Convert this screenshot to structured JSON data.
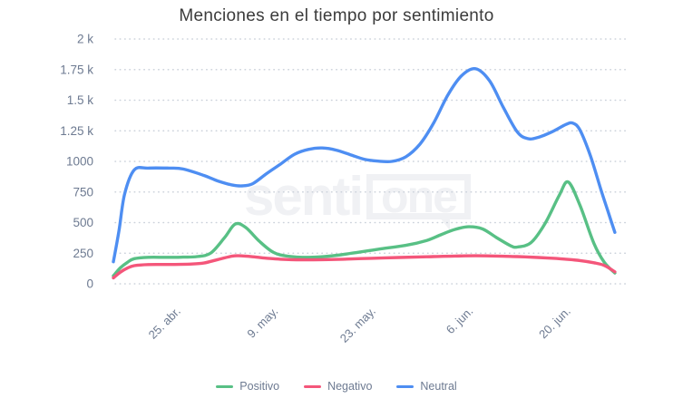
{
  "title": "Menciones en el tiempo por sentimiento",
  "watermark": {
    "text_prefix": "senti",
    "text_boxed": "one"
  },
  "colors": {
    "background": "#ffffff",
    "title_text": "#3b3b3b",
    "axis_text": "#6d7a91",
    "grid_dots": "#ccd2db",
    "watermark": "#f0f1f4",
    "positive": "#58c085",
    "negative": "#f4567a",
    "neutral": "#4e8ef2"
  },
  "chart_data": {
    "type": "line",
    "title": "Menciones en el tiempo por sentimiento",
    "x_axis": {
      "tick_labels": [
        "25. abr.",
        "9. may.",
        "23. may.",
        "6. jun.",
        "20. jun."
      ],
      "tick_days": [
        10,
        24,
        38,
        52,
        66
      ],
      "x_unit": "days",
      "x_range_days": [
        0,
        72
      ]
    },
    "y_axis": {
      "tick_labels": [
        "0",
        "250",
        "500",
        "750",
        "1000",
        "1.25 k",
        "1.5 k",
        "1.75 k",
        "2 k"
      ],
      "tick_values": [
        0,
        250,
        500,
        750,
        1000,
        1250,
        1500,
        1750,
        2000
      ],
      "range": [
        0,
        2000
      ]
    },
    "grid": "dotted-horizontal",
    "legend_position": "bottom-center",
    "series": [
      {
        "name": "Positivo",
        "color": "#58c085",
        "points": [
          [
            0,
            65
          ],
          [
            1,
            130
          ],
          [
            2,
            175
          ],
          [
            3,
            205
          ],
          [
            5,
            216
          ],
          [
            8,
            216
          ],
          [
            10,
            218
          ],
          [
            12,
            222
          ],
          [
            14,
            252
          ],
          [
            16,
            380
          ],
          [
            17.5,
            488
          ],
          [
            19,
            460
          ],
          [
            21,
            345
          ],
          [
            23,
            256
          ],
          [
            25,
            226
          ],
          [
            28,
            216
          ],
          [
            31,
            226
          ],
          [
            34,
            248
          ],
          [
            38,
            282
          ],
          [
            42,
            314
          ],
          [
            45,
            354
          ],
          [
            47,
            400
          ],
          [
            49,
            444
          ],
          [
            51,
            466
          ],
          [
            53,
            448
          ],
          [
            55,
            378
          ],
          [
            57,
            312
          ],
          [
            58,
            300
          ],
          [
            60,
            338
          ],
          [
            62,
            495
          ],
          [
            64,
            720
          ],
          [
            65.3,
            832
          ],
          [
            67,
            640
          ],
          [
            69,
            330
          ],
          [
            70.5,
            175
          ],
          [
            72,
            88
          ]
        ]
      },
      {
        "name": "Negativo",
        "color": "#f4567a",
        "points": [
          [
            0,
            48
          ],
          [
            1,
            95
          ],
          [
            2,
            128
          ],
          [
            3,
            148
          ],
          [
            5,
            157
          ],
          [
            8,
            158
          ],
          [
            11,
            161
          ],
          [
            13,
            170
          ],
          [
            15,
            198
          ],
          [
            17,
            225
          ],
          [
            18,
            229
          ],
          [
            20,
            221
          ],
          [
            22,
            209
          ],
          [
            24,
            201
          ],
          [
            27,
            196
          ],
          [
            30,
            197
          ],
          [
            33,
            201
          ],
          [
            37,
            208
          ],
          [
            41,
            215
          ],
          [
            45,
            221
          ],
          [
            49,
            227
          ],
          [
            52,
            229
          ],
          [
            55,
            227
          ],
          [
            58,
            222
          ],
          [
            61,
            215
          ],
          [
            63,
            209
          ],
          [
            65,
            201
          ],
          [
            67,
            190
          ],
          [
            69,
            172
          ],
          [
            70.5,
            150
          ],
          [
            72,
            98
          ]
        ]
      },
      {
        "name": "Neutral",
        "color": "#4e8ef2",
        "points": [
          [
            0,
            180
          ],
          [
            0.8,
            430
          ],
          [
            1.6,
            730
          ],
          [
            3,
            930
          ],
          [
            5,
            945
          ],
          [
            8,
            945
          ],
          [
            10,
            938
          ],
          [
            13,
            885
          ],
          [
            15,
            840
          ],
          [
            17,
            808
          ],
          [
            18.5,
            800
          ],
          [
            20,
            818
          ],
          [
            22,
            900
          ],
          [
            24,
            978
          ],
          [
            26,
            1058
          ],
          [
            28,
            1098
          ],
          [
            30,
            1110
          ],
          [
            32,
            1092
          ],
          [
            34,
            1055
          ],
          [
            36,
            1018
          ],
          [
            38,
            1002
          ],
          [
            40,
            1000
          ],
          [
            42,
            1038
          ],
          [
            44,
            1140
          ],
          [
            46,
            1315
          ],
          [
            48,
            1540
          ],
          [
            50,
            1700
          ],
          [
            52,
            1757
          ],
          [
            54,
            1660
          ],
          [
            56,
            1440
          ],
          [
            58,
            1240
          ],
          [
            59.5,
            1186
          ],
          [
            61,
            1196
          ],
          [
            63,
            1242
          ],
          [
            65,
            1302
          ],
          [
            66,
            1312
          ],
          [
            67,
            1255
          ],
          [
            68.5,
            1045
          ],
          [
            70,
            770
          ],
          [
            71,
            595
          ],
          [
            72,
            420
          ]
        ]
      }
    ]
  }
}
